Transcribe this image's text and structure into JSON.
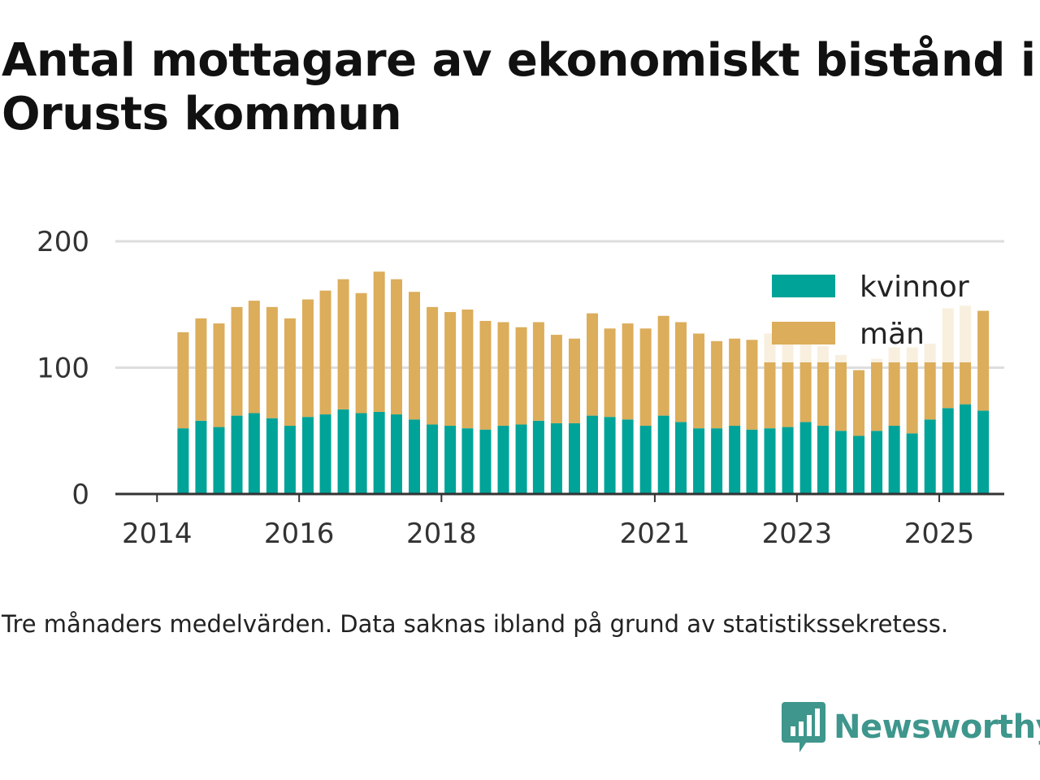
{
  "title": "Antal mottagare av ekonomiskt bistånd i Orusts kommun",
  "caption": "Tre månaders medelvärden. Data saknas ibland på grund av statistikssekretess.",
  "brand": {
    "name": "Newsworthy",
    "icon": "newsworthy-logo-icon",
    "color": "#3e968c"
  },
  "colors": {
    "kvinnor": "#00a398",
    "man": "#dcad5a",
    "grid": "#dddddd",
    "axis": "#333333"
  },
  "chart_data": {
    "type": "bar",
    "stacked": true,
    "title": "Antal mottagare av ekonomiskt bistånd i Orusts kommun",
    "xlabel": "",
    "ylabel": "",
    "ylim": [
      0,
      200
    ],
    "yticks": [
      0,
      100,
      200
    ],
    "xlim": [
      "2013-06-01",
      "2025-12-01"
    ],
    "xticks": [
      {
        "label": "2014",
        "date": "2014-01-01"
      },
      {
        "label": "2016",
        "date": "2016-01-01"
      },
      {
        "label": "2018",
        "date": "2018-01-01"
      },
      {
        "label": "2021",
        "date": "2021-01-01"
      },
      {
        "label": "2023",
        "date": "2023-01-01"
      },
      {
        "label": "2025",
        "date": "2025-01-01"
      }
    ],
    "grid": true,
    "legend_position": "top-right",
    "x": [
      "2014-05",
      "2014-08",
      "2014-11",
      "2015-02",
      "2015-05",
      "2015-08",
      "2015-11",
      "2016-02",
      "2016-05",
      "2016-08",
      "2016-11",
      "2017-02",
      "2017-05",
      "2017-08",
      "2017-11",
      "2018-02",
      "2018-05",
      "2018-08",
      "2018-11",
      "2019-02",
      "2019-05",
      "2019-08",
      "2019-11",
      "2020-02",
      "2020-05",
      "2020-08",
      "2020-11",
      "2021-02",
      "2021-05",
      "2021-08",
      "2021-11",
      "2022-02",
      "2022-05",
      "2022-08",
      "2022-11",
      "2023-02",
      "2023-05",
      "2023-08",
      "2023-11",
      "2024-02",
      "2024-05",
      "2024-08",
      "2024-11",
      "2025-02",
      "2025-05",
      "2025-08"
    ],
    "series": [
      {
        "name": "kvinnor",
        "color": "#00a398",
        "values": [
          52,
          58,
          53,
          62,
          64,
          60,
          54,
          61,
          63,
          67,
          64,
          65,
          63,
          59,
          55,
          54,
          52,
          51,
          54,
          55,
          58,
          56,
          56,
          62,
          61,
          59,
          54,
          62,
          57,
          52,
          52,
          54,
          51,
          52,
          53,
          57,
          54,
          50,
          46,
          50,
          54,
          48,
          59,
          68,
          71,
          66
        ]
      },
      {
        "name": "män",
        "color": "#dcad5a",
        "values": [
          76,
          81,
          82,
          86,
          89,
          88,
          85,
          93,
          98,
          103,
          95,
          111,
          107,
          101,
          93,
          90,
          94,
          86,
          82,
          77,
          78,
          70,
          67,
          81,
          70,
          76,
          77,
          79,
          79,
          75,
          69,
          69,
          71,
          75,
          67,
          64,
          63,
          60,
          52,
          57,
          62,
          68,
          60,
          79,
          78,
          79
        ]
      }
    ]
  }
}
